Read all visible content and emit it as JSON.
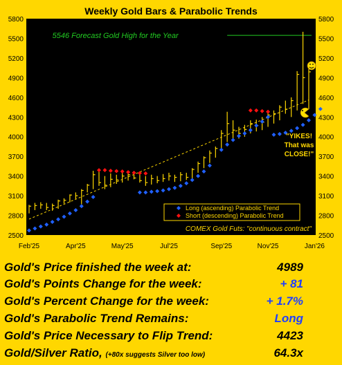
{
  "chart_data": {
    "type": "bar",
    "title": "Weekly Gold Bars & Parabolic Trends",
    "x_tick_labels": [
      "Feb'25",
      "Apr'25",
      "May'25",
      "Jul'25",
      "Sep'25",
      "Nov'25",
      "Jan'26"
    ],
    "y_ticks": [
      2500,
      2800,
      3100,
      3400,
      3700,
      4000,
      4300,
      4600,
      4900,
      5200,
      5500,
      5800
    ],
    "ylim": [
      2500,
      5800
    ],
    "forecast_line": {
      "value": 5546,
      "label": "5546 Forecast Gold High for the Year"
    },
    "legend": {
      "placement": "bottom-right",
      "long_label": "Long (ascending) Parabolic Trend",
      "short_label": "Short (descending) Parabolic Trend"
    },
    "source_note": "COMEX Gold Futs: \"continuous contract\"",
    "annotation": [
      "\"YIKES!",
      "That was",
      "CLOSE!\""
    ],
    "weekly_bars": [
      {
        "low": 2830,
        "high": 2960,
        "close": 2940
      },
      {
        "low": 2880,
        "high": 2990,
        "close": 2950
      },
      {
        "low": 2900,
        "high": 3000,
        "close": 2960
      },
      {
        "low": 2880,
        "high": 2990,
        "close": 2920
      },
      {
        "low": 2870,
        "high": 2980,
        "close": 2950
      },
      {
        "low": 2900,
        "high": 3040,
        "close": 3020
      },
      {
        "low": 2980,
        "high": 3060,
        "close": 3030
      },
      {
        "low": 3000,
        "high": 3120,
        "close": 3110
      },
      {
        "low": 3050,
        "high": 3150,
        "close": 3100
      },
      {
        "low": 2970,
        "high": 3200,
        "close": 3180
      },
      {
        "low": 3150,
        "high": 3280,
        "close": 3260
      },
      {
        "low": 3200,
        "high": 3480,
        "close": 3420
      },
      {
        "low": 3250,
        "high": 3500,
        "close": 3300
      },
      {
        "low": 3200,
        "high": 3400,
        "close": 3260
      },
      {
        "low": 3230,
        "high": 3440,
        "close": 3350
      },
      {
        "low": 3280,
        "high": 3420,
        "close": 3340
      },
      {
        "low": 3300,
        "high": 3470,
        "close": 3400
      },
      {
        "low": 3330,
        "high": 3460,
        "close": 3420
      },
      {
        "low": 3350,
        "high": 3470,
        "close": 3370
      },
      {
        "low": 3300,
        "high": 3460,
        "close": 3330
      },
      {
        "low": 3250,
        "high": 3400,
        "close": 3300
      },
      {
        "low": 3270,
        "high": 3420,
        "close": 3360
      },
      {
        "low": 3290,
        "high": 3400,
        "close": 3330
      },
      {
        "low": 3310,
        "high": 3430,
        "close": 3360
      },
      {
        "low": 3330,
        "high": 3450,
        "close": 3400
      },
      {
        "low": 3310,
        "high": 3420,
        "close": 3380
      },
      {
        "low": 3320,
        "high": 3460,
        "close": 3420
      },
      {
        "low": 3340,
        "high": 3450,
        "close": 3380
      },
      {
        "low": 3360,
        "high": 3520,
        "close": 3500
      },
      {
        "low": 3450,
        "high": 3620,
        "close": 3590
      },
      {
        "low": 3520,
        "high": 3700,
        "close": 3680
      },
      {
        "low": 3600,
        "high": 3790,
        "close": 3750
      },
      {
        "low": 3680,
        "high": 3850,
        "close": 3820
      },
      {
        "low": 3800,
        "high": 4100,
        "close": 4050
      },
      {
        "low": 3920,
        "high": 4380,
        "close": 4200
      },
      {
        "low": 3950,
        "high": 4250,
        "close": 4100
      },
      {
        "low": 3970,
        "high": 4150,
        "close": 4050
      },
      {
        "low": 4000,
        "high": 4180,
        "close": 4110
      },
      {
        "low": 4050,
        "high": 4250,
        "close": 4200
      },
      {
        "low": 4080,
        "high": 4260,
        "close": 4170
      },
      {
        "low": 4100,
        "high": 4300,
        "close": 4220
      },
      {
        "low": 4150,
        "high": 4380,
        "close": 4330
      },
      {
        "low": 4200,
        "high": 4400,
        "close": 4350
      },
      {
        "low": 4250,
        "high": 4480,
        "close": 4450
      },
      {
        "low": 4350,
        "high": 4550,
        "close": 4420
      },
      {
        "low": 4300,
        "high": 4600,
        "close": 4550
      },
      {
        "low": 4400,
        "high": 5000,
        "close": 4950
      },
      {
        "low": 4500,
        "high": 5600,
        "close": 4900
      },
      {
        "low": 4420,
        "high": 5100,
        "close": 4989
      }
    ],
    "long_trend_dots": [
      {
        "i": 0,
        "v": 2570
      },
      {
        "i": 1,
        "v": 2600
      },
      {
        "i": 2,
        "v": 2630
      },
      {
        "i": 3,
        "v": 2660
      },
      {
        "i": 4,
        "v": 2700
      },
      {
        "i": 5,
        "v": 2740
      },
      {
        "i": 6,
        "v": 2780
      },
      {
        "i": 7,
        "v": 2830
      },
      {
        "i": 8,
        "v": 2880
      },
      {
        "i": 9,
        "v": 2940
      },
      {
        "i": 10,
        "v": 3010
      },
      {
        "i": 11,
        "v": 3080
      },
      {
        "i": 19,
        "v": 3150
      },
      {
        "i": 20,
        "v": 3150
      },
      {
        "i": 21,
        "v": 3160
      },
      {
        "i": 22,
        "v": 3170
      },
      {
        "i": 23,
        "v": 3180
      },
      {
        "i": 24,
        "v": 3200
      },
      {
        "i": 25,
        "v": 3220
      },
      {
        "i": 26,
        "v": 3250
      },
      {
        "i": 27,
        "v": 3290
      },
      {
        "i": 28,
        "v": 3340
      },
      {
        "i": 29,
        "v": 3400
      },
      {
        "i": 30,
        "v": 3470
      },
      {
        "i": 31,
        "v": 3560
      },
      {
        "i": 33,
        "v": 3800
      },
      {
        "i": 34,
        "v": 3880
      },
      {
        "i": 35,
        "v": 3950
      },
      {
        "i": 36,
        "v": 4010
      },
      {
        "i": 37,
        "v": 4050
      },
      {
        "i": 38,
        "v": 4100
      },
      {
        "i": 39,
        "v": 4170
      },
      {
        "i": 40,
        "v": 4230
      },
      {
        "i": 41,
        "v": 4300
      },
      {
        "i": 42,
        "v": 4030
      },
      {
        "i": 43,
        "v": 4040
      },
      {
        "i": 44,
        "v": 4060
      },
      {
        "i": 45,
        "v": 4090
      },
      {
        "i": 46,
        "v": 4130
      },
      {
        "i": 47,
        "v": 4180
      },
      {
        "i": 48,
        "v": 4250
      },
      {
        "i": 49,
        "v": 4330
      },
      {
        "i": 50,
        "v": 4423
      }
    ],
    "short_trend_dots": [
      {
        "i": 12,
        "v": 3490
      },
      {
        "i": 13,
        "v": 3490
      },
      {
        "i": 14,
        "v": 3480
      },
      {
        "i": 15,
        "v": 3475
      },
      {
        "i": 16,
        "v": 3470
      },
      {
        "i": 17,
        "v": 3460
      },
      {
        "i": 18,
        "v": 3450
      },
      {
        "i": 19,
        "v": 3445
      },
      {
        "i": 20,
        "v": 3440
      },
      {
        "i": 38,
        "v": 4400
      },
      {
        "i": 39,
        "v": 4400
      },
      {
        "i": 40,
        "v": 4390
      },
      {
        "i": 41,
        "v": 4380
      }
    ]
  },
  "stats": {
    "price_label": "Gold's Price finished the week at:",
    "price_value": "4989",
    "points_label": "Gold's Points Change for the week:",
    "points_value": "+ 81",
    "percent_label": "Gold's Percent Change for the week:",
    "percent_value": "+ 1.7%",
    "trend_label": "Gold's Parabolic Trend Remains:",
    "trend_value": "Long",
    "flip_label": "Gold's Price Necessary to Flip Trend:",
    "flip_value": "4423",
    "ratio_label": "Gold/Silver Ratio,",
    "ratio_note": "(+80x suggests Silver too low)",
    "ratio_value": "64.3x"
  },
  "colors": {
    "background": "#ffd700",
    "plot_bg": "#000000",
    "bars": "#ffd700",
    "long_dots": "#2060ff",
    "short_dots": "#ff1010",
    "forecast_line": "#22cc22",
    "blue_text": "#1f3fff"
  }
}
